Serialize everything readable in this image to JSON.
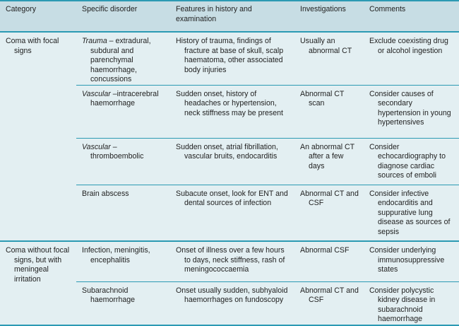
{
  "headers": [
    "Category",
    "Specific disorder",
    "Features in history and examination",
    "Investigations",
    "Comments"
  ],
  "groups": [
    {
      "category": "Coma with focal signs",
      "rows": [
        {
          "disorder_em": "Trauma",
          "disorder": " – extradural, subdural and parenchymal haemorrhage, concussions",
          "features": "History of trauma, findings of fracture at base of skull, scalp haematoma, other associated body injuries",
          "investigations": "Usually an abnormal CT",
          "comments": "Exclude coexisting drug or alcohol ingestion"
        },
        {
          "disorder_em": "Vascular",
          "disorder": " –intracerebral haemorrhage",
          "features": "Sudden onset, history of headaches or hypertension, neck stiffness may be present",
          "investigations": "Abnormal CT scan",
          "comments": "Consider causes of secondary hypertension in young hypertensives"
        },
        {
          "disorder_em": "Vascular",
          "disorder": " – thromboembolic",
          "features": "Sudden onset, atrial fibrillation, vascular bruits, endocarditis",
          "investigations": "An abnormal CT after a few days",
          "comments": "Consider echocardiography to diagnose cardiac sources of emboli"
        },
        {
          "disorder_em": "",
          "disorder": "Brain abscess",
          "features": "Subacute onset, look for ENT and dental sources of infection",
          "investigations": "Abnormal CT and CSF",
          "comments": "Consider infective endocarditis and suppurative lung disease as sources of sepsis"
        }
      ]
    },
    {
      "category": "Coma without focal signs, but with meningeal irritation",
      "rows": [
        {
          "disorder_em": "",
          "disorder": "Infection, meningitis, encephalitis",
          "features": "Onset of illness over a few hours to days, neck stiffness, rash of meningococcaemia",
          "investigations": "Abnormal CSF",
          "comments": "Consider underlying immunosuppressive states"
        },
        {
          "disorder_em": "",
          "disorder": "Subarachnoid haemorrhage",
          "features": "Onset usually sudden, subhyaloid haemorrhages on fundoscopy",
          "investigations": "Abnormal CT and CSF",
          "comments": "Consider polycystic kidney disease in subarachnoid haemorrhage"
        }
      ]
    }
  ]
}
